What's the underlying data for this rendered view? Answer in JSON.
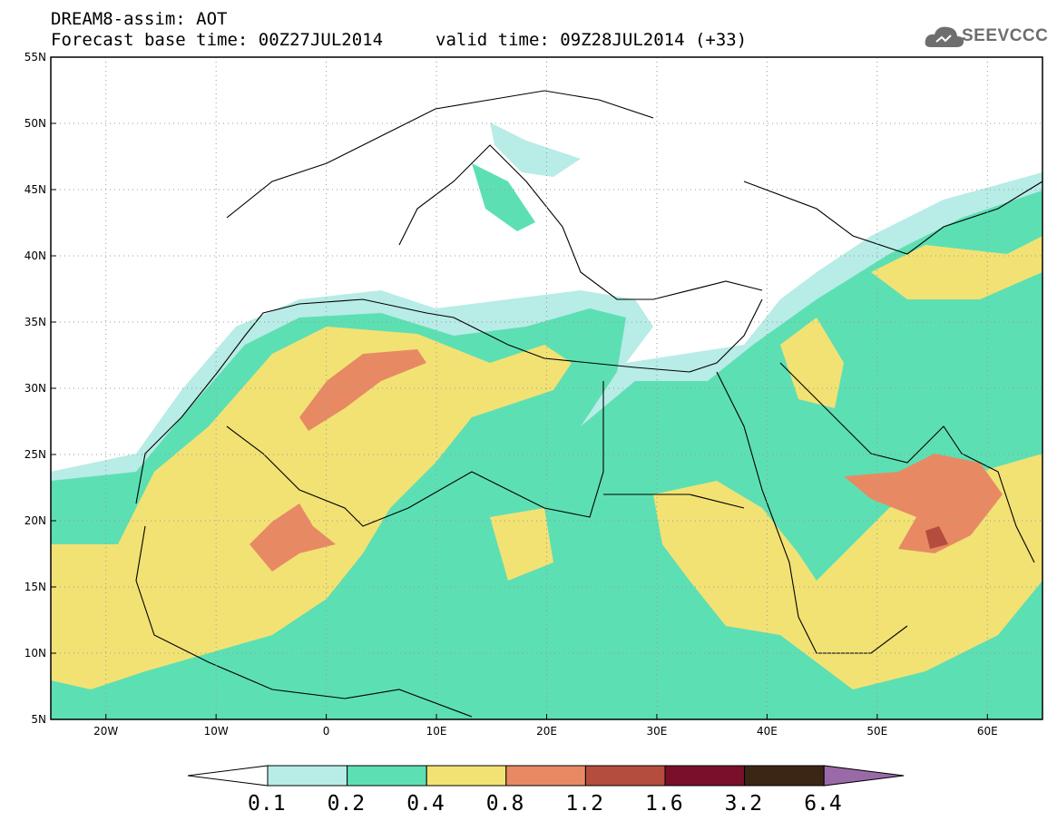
{
  "header": {
    "title": "DREAM8-assim: AOT",
    "forecast_base": "Forecast base time: 00Z27JUL2014",
    "valid_time": "valid time: 09Z28JUL2014 (+33)"
  },
  "logo": {
    "text": "SEEVCCC",
    "icon": "cloud-icon"
  },
  "map": {
    "lon_range": [
      -25,
      65
    ],
    "lat_range": [
      5,
      55
    ],
    "lat_ticks": [
      "55N",
      "50N",
      "45N",
      "40N",
      "35N",
      "30N",
      "25N",
      "20N",
      "15N",
      "10N",
      "5N"
    ],
    "lon_ticks": [
      "20W",
      "10W",
      "0",
      "10E",
      "20E",
      "30E",
      "40E",
      "50E",
      "60E"
    ],
    "variable": "AOT",
    "colors": {
      "c0": "#b8ece6",
      "c1": "#5ddfb4",
      "c2": "#f2e274",
      "c3": "#e78a64",
      "c4": "#b44d3e"
    }
  },
  "colorbar": {
    "labels": [
      "0.1",
      "0.2",
      "0.4",
      "0.8",
      "1.2",
      "1.6",
      "3.2",
      "6.4"
    ],
    "colors": [
      "#ffffff",
      "#b8ece6",
      "#5ddfb4",
      "#f2e274",
      "#e78a64",
      "#b44d3e",
      "#7a0f2a",
      "#3b2616",
      "#9a6aa8"
    ]
  }
}
